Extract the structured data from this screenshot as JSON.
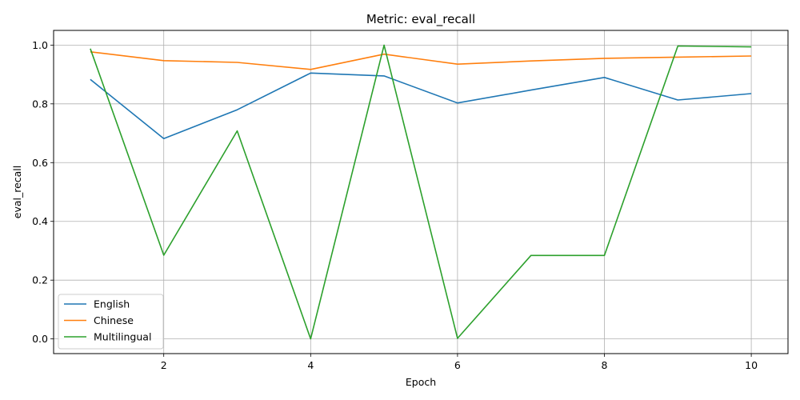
{
  "chart_data": {
    "type": "line",
    "title": "Metric: eval_recall",
    "xlabel": "Epoch",
    "ylabel": "eval_recall",
    "x": [
      1,
      2,
      3,
      4,
      5,
      6,
      7,
      8,
      9,
      10
    ],
    "xlim": [
      0.5,
      10.5
    ],
    "ylim": [
      -0.05,
      1.05
    ],
    "xticks": [
      2,
      4,
      6,
      8,
      10
    ],
    "yticks": [
      0.0,
      0.2,
      0.4,
      0.6,
      0.8,
      1.0
    ],
    "xtick_labels": [
      "2",
      "4",
      "6",
      "8",
      "10"
    ],
    "ytick_labels": [
      "0.0",
      "0.2",
      "0.4",
      "0.6",
      "0.8",
      "1.0"
    ],
    "grid": true,
    "legend_position": "bottom-left",
    "series": [
      {
        "name": "English",
        "color": "#1f77b4",
        "values": [
          0.883,
          0.682,
          0.78,
          0.905,
          0.895,
          0.803,
          0.847,
          0.89,
          0.813,
          0.835
        ]
      },
      {
        "name": "Chinese",
        "color": "#ff7f0e",
        "values": [
          0.977,
          0.947,
          0.941,
          0.917,
          0.969,
          0.935,
          0.946,
          0.955,
          0.959,
          0.963
        ]
      },
      {
        "name": "Multilingual",
        "color": "#2ca02c",
        "values": [
          0.988,
          0.285,
          0.708,
          0.0,
          1.0,
          0.002,
          0.284,
          0.284,
          0.997,
          0.994
        ]
      }
    ]
  }
}
